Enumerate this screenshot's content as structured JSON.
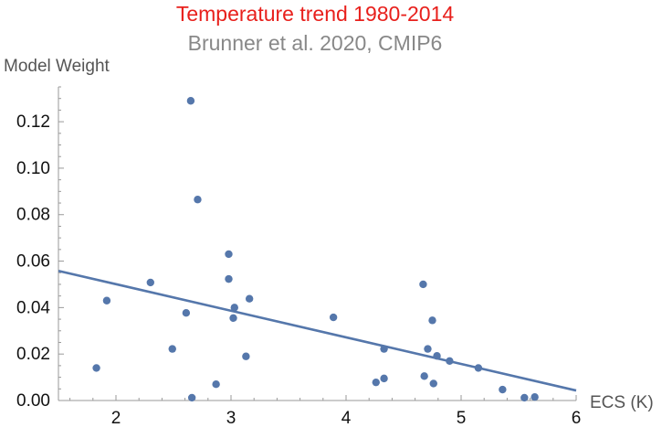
{
  "chart_data": {
    "type": "scatter",
    "title": "Temperature trend 1980-2014",
    "subtitle": "Brunner et al. 2020, CMIP6",
    "xlabel": "ECS (K)",
    "ylabel": "Model Weight",
    "xlim": [
      1.5,
      6
    ],
    "ylim": [
      0,
      0.135
    ],
    "x_ticks": [
      2,
      3,
      4,
      5,
      6
    ],
    "x_tick_labels": [
      "2",
      "3",
      "4",
      "5",
      "6"
    ],
    "y_ticks": [
      0,
      0.02,
      0.04,
      0.06,
      0.08,
      0.1,
      0.12
    ],
    "y_tick_labels": [
      "0.00",
      "0.02",
      "0.04",
      "0.06",
      "0.08",
      "0.10",
      "0.12"
    ],
    "grid": false,
    "colors": {
      "title": "#e8201c",
      "subtitle": "#888888",
      "points": "#5577ab",
      "trend": "#5577ab",
      "axis": "#999999"
    },
    "points": [
      {
        "x": 1.83,
        "y": 0.014
      },
      {
        "x": 1.92,
        "y": 0.043
      },
      {
        "x": 2.3,
        "y": 0.0508
      },
      {
        "x": 2.49,
        "y": 0.0222
      },
      {
        "x": 2.61,
        "y": 0.0377
      },
      {
        "x": 2.65,
        "y": 0.129
      },
      {
        "x": 2.66,
        "y": 0.0012
      },
      {
        "x": 2.71,
        "y": 0.0865
      },
      {
        "x": 2.87,
        "y": 0.007
      },
      {
        "x": 2.98,
        "y": 0.063
      },
      {
        "x": 2.98,
        "y": 0.0523
      },
      {
        "x": 3.02,
        "y": 0.0355
      },
      {
        "x": 3.03,
        "y": 0.04
      },
      {
        "x": 3.13,
        "y": 0.019
      },
      {
        "x": 3.16,
        "y": 0.0438
      },
      {
        "x": 3.89,
        "y": 0.0358
      },
      {
        "x": 4.26,
        "y": 0.0078
      },
      {
        "x": 4.33,
        "y": 0.0222
      },
      {
        "x": 4.33,
        "y": 0.0095
      },
      {
        "x": 4.67,
        "y": 0.05
      },
      {
        "x": 4.68,
        "y": 0.0105
      },
      {
        "x": 4.71,
        "y": 0.0222
      },
      {
        "x": 4.75,
        "y": 0.0345
      },
      {
        "x": 4.76,
        "y": 0.0073
      },
      {
        "x": 4.79,
        "y": 0.0192
      },
      {
        "x": 4.9,
        "y": 0.017
      },
      {
        "x": 5.15,
        "y": 0.014
      },
      {
        "x": 5.36,
        "y": 0.0047
      },
      {
        "x": 5.55,
        "y": 0.0012
      },
      {
        "x": 5.64,
        "y": 0.0015
      }
    ],
    "trendline": {
      "x": [
        1.5,
        6.0
      ],
      "y": [
        0.0558,
        0.0043
      ]
    }
  }
}
